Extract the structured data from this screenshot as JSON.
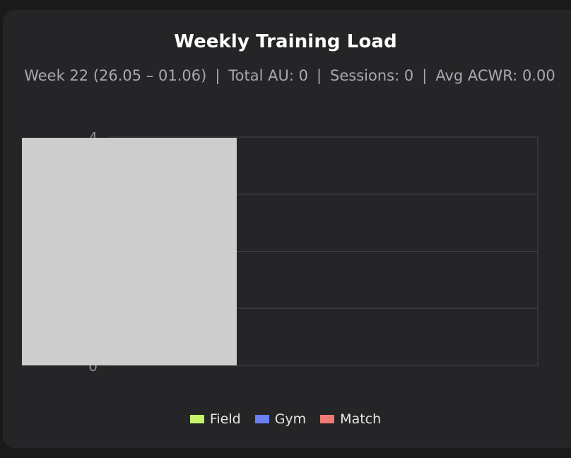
{
  "chart_data": {
    "type": "bar",
    "title": "Weekly Training Load",
    "subtitle": {
      "week": "Week 22 (26.05 – 01.06)",
      "total": "Total AU: 0",
      "sessions": "Sessions: 0",
      "acwr": "Avg ACWR: 0.00"
    },
    "separator": "|",
    "categories": [],
    "series": [
      {
        "name": "Field",
        "color": "#c6f36b",
        "values": []
      },
      {
        "name": "Gym",
        "color": "#6b7ff5",
        "values": []
      },
      {
        "name": "Match",
        "color": "#ef7a74",
        "values": []
      }
    ],
    "ylim": [
      0,
      4
    ],
    "yticks": [
      "0",
      "1",
      "2",
      "3",
      "4"
    ],
    "grid": true,
    "legend": "bottom"
  }
}
